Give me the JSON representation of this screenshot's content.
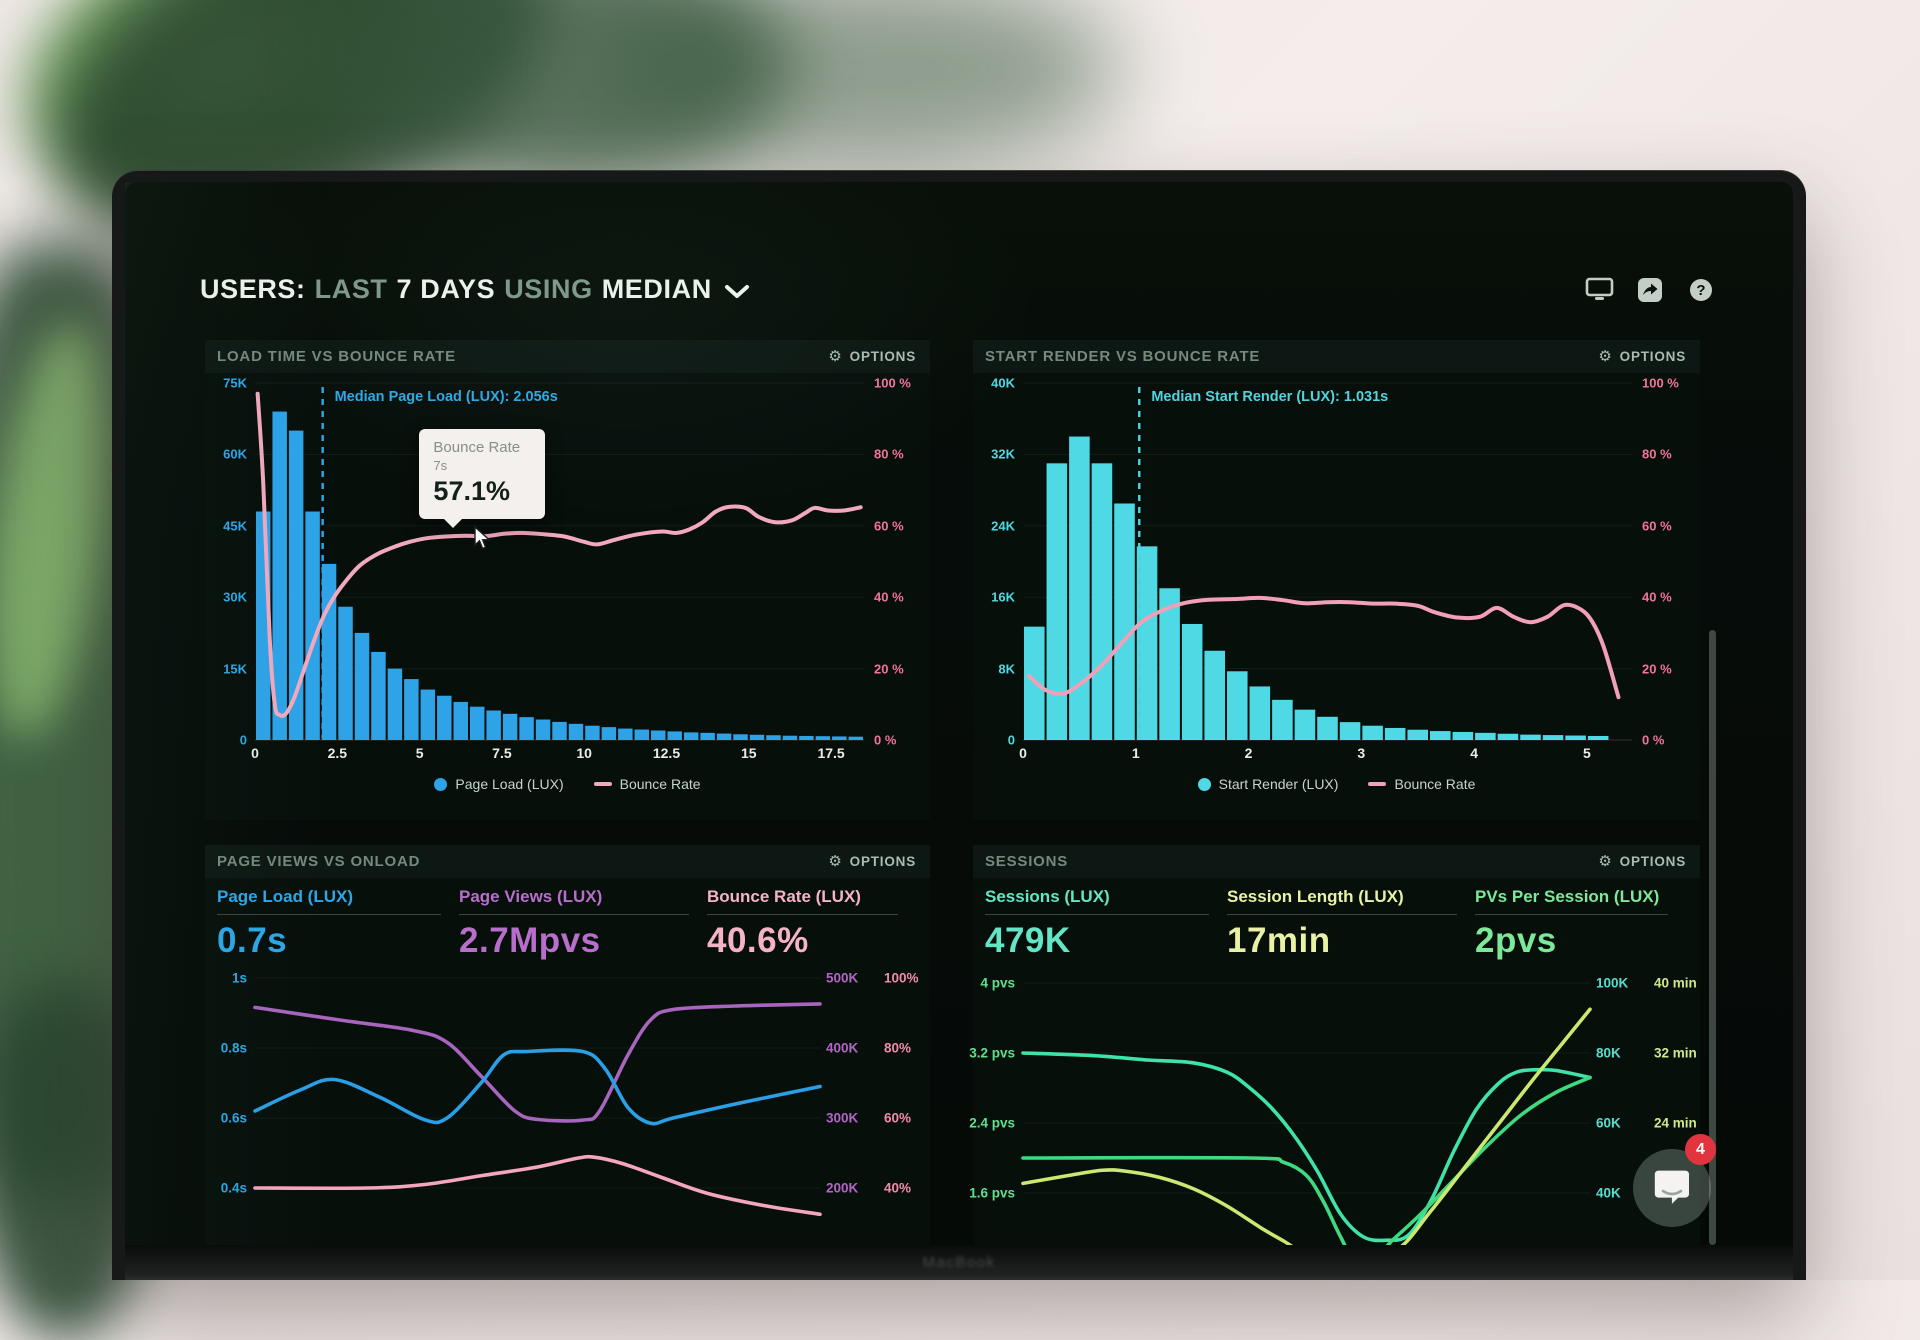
{
  "page": {
    "header": {
      "title_segments": [
        {
          "text": "USERS:"
        },
        {
          "text": "LAST"
        },
        {
          "text": "7 DAYS"
        },
        {
          "text": "USING"
        },
        {
          "text": "MEDIAN"
        }
      ],
      "header_icons": [
        "display-icon",
        "share-icon",
        "help-icon"
      ]
    },
    "chat_widget": {
      "unread_count": "4"
    },
    "laptop_label": "MacBook"
  },
  "chart_data": [
    {
      "type": "histogram",
      "title": "LOAD TIME VS BOUNCE RATE",
      "options_label": "OPTIONS",
      "x_max": 18.5,
      "bin_width": 0.5,
      "x_tick_values": [
        0,
        2.5,
        5,
        7.5,
        10,
        12.5,
        15,
        17.5
      ],
      "x_tick_labels": [
        "0",
        "2.5",
        "5",
        "7.5",
        "10",
        "12.5",
        "15",
        "17.5"
      ],
      "y_left": {
        "labels": [
          "75K",
          "60K",
          "45K",
          "30K",
          "15K",
          "0"
        ],
        "max_k": 75,
        "color": "#2ca7e8"
      },
      "y_right": {
        "labels": [
          "100 %",
          "80 %",
          "60 %",
          "40 %",
          "20 %",
          "0 %"
        ],
        "max": 100,
        "color": "#f2739c"
      },
      "bars": {
        "name": "Page Load (LUX)",
        "color": "#2ea3e8",
        "values_k": [
          48,
          69,
          65,
          48,
          37,
          28,
          22.5,
          18.5,
          15,
          12.8,
          10.6,
          9.3,
          8,
          7,
          6.2,
          5.5,
          4.8,
          4.3,
          3.8,
          3.4,
          3,
          2.7,
          2.4,
          2.2,
          2,
          1.8,
          1.6,
          1.5,
          1.35,
          1.2,
          1.1,
          1,
          0.9,
          0.85,
          0.8,
          0.75,
          0.7
        ]
      },
      "line": {
        "name": "Bounce Rate",
        "color": "#f2a8be",
        "points": [
          [
            0.08,
            97
          ],
          [
            0.25,
            72
          ],
          [
            0.45,
            28
          ],
          [
            0.6,
            10
          ],
          [
            0.75,
            7
          ],
          [
            0.95,
            7.5
          ],
          [
            1.2,
            12
          ],
          [
            1.5,
            20
          ],
          [
            1.8,
            28
          ],
          [
            2.1,
            35
          ],
          [
            2.4,
            40
          ],
          [
            2.8,
            45
          ],
          [
            3.2,
            49
          ],
          [
            3.7,
            52
          ],
          [
            4.2,
            54
          ],
          [
            4.7,
            55.5
          ],
          [
            5.2,
            56.5
          ],
          [
            5.8,
            57
          ],
          [
            6.4,
            57.2
          ],
          [
            7,
            57.1
          ],
          [
            7.6,
            57.8
          ],
          [
            8.2,
            58
          ],
          [
            8.8,
            57.6
          ],
          [
            9.4,
            57
          ],
          [
            10,
            55.5
          ],
          [
            10.4,
            54.8
          ],
          [
            10.9,
            56
          ],
          [
            11.4,
            57.2
          ],
          [
            11.9,
            58
          ],
          [
            12.4,
            58.4
          ],
          [
            12.8,
            58
          ],
          [
            13.2,
            59
          ],
          [
            13.6,
            61
          ],
          [
            14,
            64
          ],
          [
            14.4,
            65.3
          ],
          [
            14.9,
            65
          ],
          [
            15.3,
            62.5
          ],
          [
            15.8,
            61
          ],
          [
            16.3,
            61.5
          ],
          [
            16.7,
            63.5
          ],
          [
            17,
            65
          ],
          [
            17.4,
            64.3
          ],
          [
            17.9,
            64.3
          ],
          [
            18.4,
            65.2
          ]
        ]
      },
      "median": {
        "label": "Median Page Load (LUX): 2.056s",
        "value": 2.056,
        "color": "#2da9e8"
      },
      "tooltip": {
        "title": "Bounce Rate",
        "x": "7s",
        "value": "57.1%"
      },
      "legend": [
        {
          "marker": "dot",
          "label": "Page Load (LUX)",
          "color": "#2ea3e8"
        },
        {
          "marker": "dash",
          "label": "Bounce Rate",
          "color": "#f2a8be"
        }
      ]
    },
    {
      "type": "histogram",
      "title": "START RENDER VS BOUNCE RATE",
      "options_label": "OPTIONS",
      "x_max": 5.4,
      "bin_width": 0.2,
      "x_tick_values": [
        0,
        1,
        2,
        3,
        4,
        5
      ],
      "x_tick_labels": [
        "0",
        "1",
        "2",
        "3",
        "4",
        "5"
      ],
      "y_left": {
        "labels": [
          "40K",
          "32K",
          "24K",
          "16K",
          "8K",
          "0"
        ],
        "max_k": 40,
        "color": "#4fd8e2"
      },
      "y_right": {
        "labels": [
          "100 %",
          "80 %",
          "60 %",
          "40 %",
          "20 %",
          "0 %"
        ],
        "max": 100,
        "color": "#f2739c"
      },
      "bars": {
        "name": "Start Render (LUX)",
        "color": "#4fd9e4",
        "values_k": [
          12.7,
          31,
          34,
          31,
          26.5,
          21.7,
          17,
          13,
          10,
          7.7,
          6,
          4.5,
          3.4,
          2.6,
          2,
          1.6,
          1.35,
          1.15,
          1,
          0.9,
          0.8,
          0.7,
          0.6,
          0.55,
          0.5,
          0.45
        ]
      },
      "line": {
        "name": "Bounce Rate",
        "color": "#f2a0b8",
        "points": [
          [
            0.05,
            18
          ],
          [
            0.2,
            14
          ],
          [
            0.35,
            13
          ],
          [
            0.5,
            15.5
          ],
          [
            0.7,
            21
          ],
          [
            0.9,
            28
          ],
          [
            1.05,
            33
          ],
          [
            1.25,
            36.5
          ],
          [
            1.45,
            38.5
          ],
          [
            1.65,
            39.3
          ],
          [
            1.9,
            39.5
          ],
          [
            2.1,
            39.8
          ],
          [
            2.3,
            39.2
          ],
          [
            2.5,
            38.3
          ],
          [
            2.7,
            38.6
          ],
          [
            2.9,
            38.6
          ],
          [
            3.1,
            38.2
          ],
          [
            3.3,
            38.2
          ],
          [
            3.5,
            37.6
          ],
          [
            3.65,
            35.8
          ],
          [
            3.85,
            34.3
          ],
          [
            4.05,
            34.5
          ],
          [
            4.2,
            37
          ],
          [
            4.35,
            34.5
          ],
          [
            4.5,
            33
          ],
          [
            4.65,
            34.5
          ],
          [
            4.8,
            37.8
          ],
          [
            4.95,
            36.5
          ],
          [
            5.05,
            33
          ],
          [
            5.15,
            26
          ],
          [
            5.28,
            12
          ]
        ]
      },
      "median": {
        "label": "Median Start Render (LUX): 1.031s",
        "value": 1.031,
        "color": "#4fd4e0"
      },
      "legend": [
        {
          "marker": "dot",
          "label": "Start Render (LUX)",
          "color": "#4fd9e4"
        },
        {
          "marker": "dash",
          "label": "Bounce Rate",
          "color": "#f2a0b8"
        }
      ]
    },
    {
      "type": "lines",
      "title": "PAGE VIEWS VS ONLOAD",
      "options_label": "OPTIONS",
      "metrics": [
        {
          "label": "Page Load (LUX)",
          "value": "0.7s",
          "color": "#2ca7e8"
        },
        {
          "label": "Page Views (LUX)",
          "value": "2.7Mpvs",
          "color": "#b76fcb"
        },
        {
          "label": "Bounce Rate (LUX)",
          "value": "40.6%",
          "color": "#f6b3c8"
        }
      ],
      "left_axis": {
        "labels": [
          "1s",
          "0.8s",
          "0.6s",
          "0.4s"
        ],
        "color": "#2ca7e8"
      },
      "right_axis": {
        "pairs": [
          [
            "500K",
            "100%"
          ],
          [
            "400K",
            "80%"
          ],
          [
            "300K",
            "60%"
          ],
          [
            "200K",
            "40%"
          ]
        ],
        "colors": [
          "#b165c4",
          "#f08bad"
        ]
      },
      "series": [
        {
          "name": "Page Views",
          "color": "#a765bd",
          "axis": {
            "top": 500,
            "per_row": 100
          },
          "points": [
            [
              0,
              458
            ],
            [
              15,
              440
            ],
            [
              28,
              425
            ],
            [
              34,
              408
            ],
            [
              40,
              360
            ],
            [
              46,
              310
            ],
            [
              50,
              298
            ],
            [
              58,
              297
            ],
            [
              61,
              310
            ],
            [
              66,
              390
            ],
            [
              70,
              440
            ],
            [
              74,
              455
            ],
            [
              85,
              460
            ],
            [
              100,
              463
            ]
          ]
        },
        {
          "name": "Page Load",
          "color": "#2b9fe6",
          "axis": {
            "top": 1.0,
            "per_row": 0.2
          },
          "points": [
            [
              0,
              0.62
            ],
            [
              8,
              0.68
            ],
            [
              14,
              0.71
            ],
            [
              22,
              0.66
            ],
            [
              30,
              0.595
            ],
            [
              34,
              0.6
            ],
            [
              40,
              0.7
            ],
            [
              44,
              0.78
            ],
            [
              48,
              0.79
            ],
            [
              58,
              0.79
            ],
            [
              62,
              0.74
            ],
            [
              66,
              0.63
            ],
            [
              70,
              0.585
            ],
            [
              74,
              0.6
            ],
            [
              85,
              0.64
            ],
            [
              100,
              0.69
            ]
          ]
        },
        {
          "name": "Bounce Rate",
          "color": "#f4a7bc",
          "axis": {
            "top": 100,
            "per_row": 20
          },
          "points": [
            [
              0,
              40
            ],
            [
              20,
              40
            ],
            [
              30,
              41
            ],
            [
              40,
              43.5
            ],
            [
              50,
              46
            ],
            [
              57,
              48.5
            ],
            [
              60,
              48.8
            ],
            [
              65,
              47
            ],
            [
              72,
              43
            ],
            [
              80,
              38.5
            ],
            [
              90,
              35
            ],
            [
              100,
              32.5
            ]
          ]
        }
      ]
    },
    {
      "type": "lines",
      "title": "SESSIONS",
      "options_label": "OPTIONS",
      "metrics": [
        {
          "label": "Sessions (LUX)",
          "value": "479K",
          "color": "#63e6c6"
        },
        {
          "label": "Session Length (LUX)",
          "value": "17min",
          "color": "#e9f2a4"
        },
        {
          "label": "PVs Per Session (LUX)",
          "value": "2pvs",
          "color": "#7de898"
        }
      ],
      "left_axis": {
        "labels": [
          "4 pvs",
          "3.2 pvs",
          "2.4 pvs",
          "1.6 pvs"
        ],
        "color": "#5fe08d"
      },
      "right_axis": {
        "pairs": [
          [
            "100K",
            "40 min"
          ],
          [
            "80K",
            "32 min"
          ],
          [
            "60K",
            "24 min"
          ],
          [
            "40K",
            ""
          ]
        ],
        "colors": [
          "#57dcd0",
          "#cfe98a"
        ]
      },
      "series": [
        {
          "name": "Sessions",
          "color": "#3fe2a8",
          "axis": {
            "top": 100,
            "per_row": 20
          },
          "points": [
            [
              0,
              80
            ],
            [
              12,
              79.3
            ],
            [
              22,
              78
            ],
            [
              30,
              77.2
            ],
            [
              36,
              74.5
            ],
            [
              40,
              70
            ],
            [
              44,
              64
            ],
            [
              48,
              56
            ],
            [
              52,
              46
            ],
            [
              56,
              34
            ],
            [
              60,
              27.5
            ],
            [
              64,
              26.5
            ],
            [
              68,
              28
            ],
            [
              72,
              38
            ],
            [
              76,
              52
            ],
            [
              80,
              64
            ],
            [
              84,
              71.5
            ],
            [
              87,
              74.5
            ],
            [
              90,
              75.2
            ],
            [
              94,
              75
            ],
            [
              100,
              73
            ]
          ]
        },
        {
          "name": "PVs Per Session",
          "color": "#3fd97f",
          "axis": {
            "top": 4,
            "per_row": 0.8
          },
          "points": [
            [
              0,
              2
            ],
            [
              40,
              2
            ],
            [
              46,
              1.95
            ],
            [
              50,
              1.8
            ],
            [
              53,
              1.5
            ],
            [
              56,
              1.1
            ],
            [
              58,
              0.9
            ],
            [
              62,
              0.85
            ],
            [
              65,
              1.05
            ],
            [
              70,
              1.35
            ],
            [
              76,
              1.75
            ],
            [
              82,
              2.15
            ],
            [
              88,
              2.5
            ],
            [
              94,
              2.75
            ],
            [
              100,
              2.92
            ]
          ]
        },
        {
          "name": "Session Length",
          "color": "#cbe970",
          "axis": {
            "top": 40,
            "per_row": 8
          },
          "points": [
            [
              0,
              17.1
            ],
            [
              8,
              18
            ],
            [
              14,
              18.6
            ],
            [
              18,
              18.5
            ],
            [
              24,
              17.8
            ],
            [
              30,
              16.5
            ],
            [
              36,
              14.5
            ],
            [
              42,
              12
            ],
            [
              46,
              10.5
            ],
            [
              50,
              9
            ],
            [
              58,
              7.5
            ],
            [
              66,
              9.5
            ],
            [
              72,
              14
            ],
            [
              78,
              19
            ],
            [
              84,
              24
            ],
            [
              90,
              29
            ],
            [
              95,
              33
            ],
            [
              100,
              37
            ]
          ]
        }
      ]
    }
  ]
}
